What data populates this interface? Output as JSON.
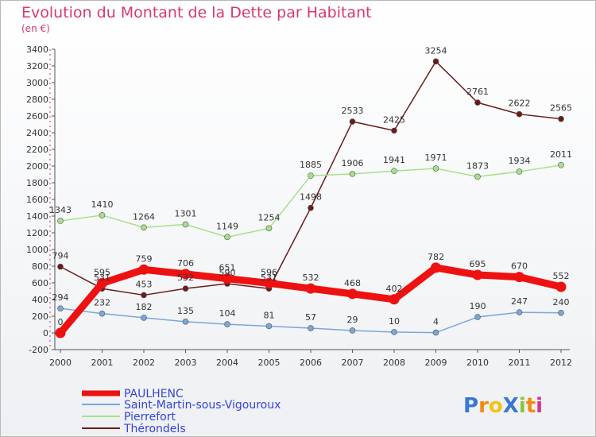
{
  "chart_data": {
    "type": "line",
    "title": "Evolution du Montant de la Dette par Habitant",
    "subtitle": "(en €)",
    "x": [
      "2000",
      "2001",
      "2002",
      "2003",
      "2004",
      "2005",
      "2006",
      "2007",
      "2008",
      "2009",
      "2010",
      "2011",
      "2012"
    ],
    "ylim": [
      -200,
      3400
    ],
    "yticks": [
      -200,
      0,
      200,
      400,
      600,
      800,
      1000,
      1200,
      1400,
      1600,
      1800,
      2000,
      2200,
      2400,
      2600,
      2800,
      3000,
      3200,
      3400
    ],
    "grid": false,
    "legend_position": "bottom-left",
    "series": [
      {
        "name": "Thérondels",
        "color": "#6b1a1a",
        "values": [
          794,
          531,
          453,
          532,
          590,
          531,
          1498,
          2533,
          2425,
          3254,
          2761,
          2622,
          2565
        ],
        "labels": [
          "794",
          "531",
          "453",
          "532",
          "590",
          "531",
          "1498",
          "2533",
          "2425",
          "3254",
          "2761",
          "2622",
          "2565"
        ]
      },
      {
        "name": "Pierrefort",
        "color": "#a8e08a",
        "values": [
          1343,
          1410,
          1264,
          1301,
          1149,
          1254,
          1885,
          1906,
          1941,
          1971,
          1873,
          1934,
          2011
        ],
        "labels": [
          "1343",
          "1410",
          "1264",
          "1301",
          "1149",
          "1254",
          "1885",
          "1906",
          "1941",
          "1971",
          "1873",
          "1934",
          "2011"
        ]
      },
      {
        "name": "Saint-Martin-sous-Vigouroux",
        "color": "#7aa7d8",
        "values": [
          294,
          232,
          182,
          135,
          104,
          81,
          57,
          29,
          10,
          4,
          190,
          247,
          240
        ],
        "labels": [
          "294",
          "232",
          "182",
          "135",
          "104",
          "81",
          "57",
          "29",
          "10",
          "4",
          "190",
          "247",
          "240"
        ]
      },
      {
        "name": "PAULHENC",
        "color": "#ee1111",
        "values": [
          0,
          595,
          759,
          706,
          651,
          596,
          532,
          468,
          402,
          782,
          695,
          670,
          552
        ],
        "labels": [
          "0",
          "595",
          "759",
          "706",
          "651",
          "596",
          "532",
          "468",
          "402",
          "782",
          "695",
          "670",
          "552"
        ]
      }
    ]
  },
  "legend": [
    "PAULHENC",
    "Saint-Martin-sous-Vigouroux",
    "Pierrefort",
    "Thérondels"
  ],
  "logo": {
    "text": "ProXiti",
    "letter_colors": [
      "#3a78d0",
      "#f28a12",
      "#f2c412",
      "#3a78d0",
      "#8ac43a",
      "#f28a12",
      "#d6338a"
    ]
  }
}
